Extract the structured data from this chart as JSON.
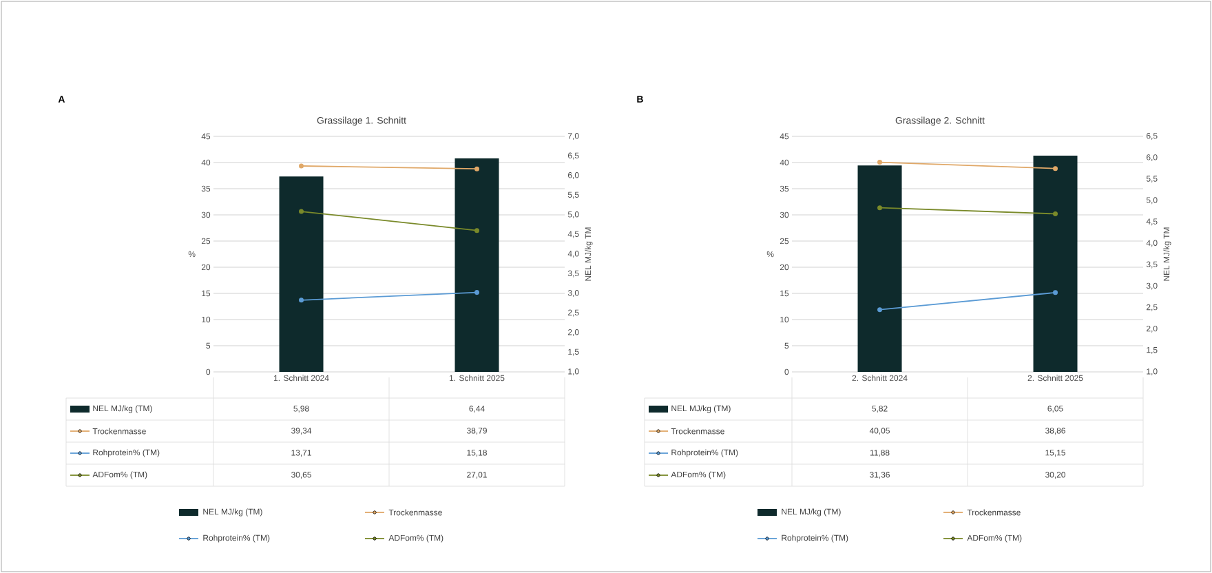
{
  "chart_data": [
    {
      "type": "bar",
      "title": "Grassilage 1. Schnitt",
      "annotations": [
        "A"
      ],
      "categories": [
        "1. Schnitt 2024",
        "1. Schnitt 2025"
      ],
      "series": [
        {
          "name": "NEL MJ/kg (TM)",
          "color": "#0e2a2c",
          "values": [
            5.98,
            6.44
          ],
          "value_labels": [
            "5,98",
            "6,44"
          ],
          "axis": "y2"
        },
        {
          "name": "Trockenmasse",
          "type": "line",
          "color": "#e0a868",
          "values": [
            39.34,
            38.79
          ],
          "value_labels": [
            "39,34",
            "38,79"
          ]
        },
        {
          "name": "Rohprotein% (TM)",
          "type": "line",
          "color": "#5b9bd5",
          "values": [
            13.71,
            15.18
          ],
          "value_labels": [
            "13,71",
            "15,18"
          ]
        },
        {
          "name": "ADFom% (TM)",
          "type": "line",
          "color": "#7a8a2a",
          "values": [
            30.65,
            27.01
          ],
          "value_labels": [
            "30,65",
            "27,01"
          ]
        }
      ],
      "ylabel": "%",
      "y2label": "NEL MJ/kg TM",
      "ylim": [
        0,
        45
      ],
      "yticks": [
        0,
        5,
        10,
        15,
        20,
        25,
        30,
        35,
        40,
        45
      ],
      "y2lim": [
        1,
        7
      ],
      "y2ticks": [
        {
          "value": 1,
          "label": "1,0"
        },
        {
          "value": 1.5,
          "label": "1,5"
        },
        {
          "value": 2,
          "label": "2,0"
        },
        {
          "value": 2.5,
          "label": "2,5"
        },
        {
          "value": 3,
          "label": "3,0"
        },
        {
          "value": 3.5,
          "label": "3,5"
        },
        {
          "value": 4,
          "label": "4,0"
        },
        {
          "value": 4.5,
          "label": "4,5"
        },
        {
          "value": 5,
          "label": "5,0"
        },
        {
          "value": 5.5,
          "label": "5,5"
        },
        {
          "value": 6,
          "label": "6,0"
        },
        {
          "value": 6.5,
          "label": "6,5"
        },
        {
          "value": 7,
          "label": "7,0"
        }
      ],
      "grid": "y",
      "legend": "bottom",
      "marker": "circle"
    },
    {
      "type": "bar",
      "title": "Grassilage 2. Schnitt",
      "annotations": [
        "B"
      ],
      "categories": [
        "2. Schnitt 2024",
        "2. Schnitt 2025"
      ],
      "series": [
        {
          "name": "NEL MJ/kg (TM)",
          "color": "#0e2a2c",
          "values": [
            5.82,
            6.05
          ],
          "value_labels": [
            "5,82",
            "6,05"
          ],
          "axis": "y2"
        },
        {
          "name": "Trockenmasse",
          "type": "line",
          "color": "#e0a868",
          "values": [
            40.05,
            38.86
          ],
          "value_labels": [
            "40,05",
            "38,86"
          ]
        },
        {
          "name": "Rohprotein% (TM)",
          "type": "line",
          "color": "#5b9bd5",
          "values": [
            11.88,
            15.15
          ],
          "value_labels": [
            "11,88",
            "15,15"
          ]
        },
        {
          "name": "ADFom% (TM)",
          "type": "line",
          "color": "#7a8a2a",
          "values": [
            31.36,
            30.2
          ],
          "value_labels": [
            "31,36",
            "30,20"
          ]
        }
      ],
      "ylabel": "%",
      "y2label": "NEL MJ/kg TM",
      "ylim": [
        0,
        45
      ],
      "yticks": [
        0,
        5,
        10,
        15,
        20,
        25,
        30,
        35,
        40,
        45
      ],
      "y2lim": [
        1,
        6.5
      ],
      "y2ticks": [
        {
          "value": 1,
          "label": "1,0"
        },
        {
          "value": 1.5,
          "label": "1,5"
        },
        {
          "value": 2,
          "label": "2,0"
        },
        {
          "value": 2.5,
          "label": "2,5"
        },
        {
          "value": 3,
          "label": "3,0"
        },
        {
          "value": 3.5,
          "label": "3,5"
        },
        {
          "value": 4,
          "label": "4,0"
        },
        {
          "value": 4.5,
          "label": "4,5"
        },
        {
          "value": 5,
          "label": "5,0"
        },
        {
          "value": 5.5,
          "label": "5,5"
        },
        {
          "value": 6,
          "label": "6,0"
        },
        {
          "value": 6.5,
          "label": "6,5"
        }
      ],
      "grid": "y",
      "legend": "bottom",
      "marker": "circle"
    }
  ]
}
